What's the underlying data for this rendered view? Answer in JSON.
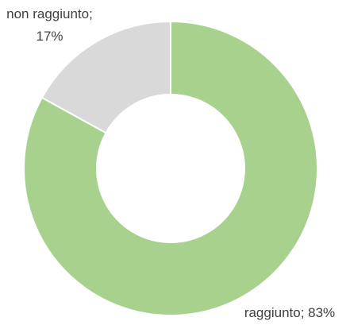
{
  "chart_data": {
    "type": "donut",
    "values": [
      83,
      17
    ],
    "value_labels": [
      "raggiunto; 83%",
      "non raggiunto; 17%"
    ],
    "colors": [
      "#a9d18e",
      "#d9d9d9"
    ]
  }
}
